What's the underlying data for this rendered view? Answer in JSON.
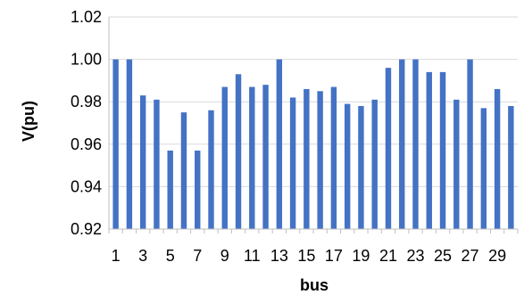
{
  "chart_data": {
    "type": "bar",
    "xlabel": "bus",
    "ylabel": "V(pu)",
    "ylim": [
      0.92,
      1.02
    ],
    "yticks": [
      "0.92",
      "0.94",
      "0.96",
      "0.98",
      "1.00",
      "1.02"
    ],
    "grid": "horizontal",
    "legend": "none",
    "bar_color": "#4472C4",
    "categories": [
      "1",
      "2",
      "3",
      "4",
      "5",
      "6",
      "7",
      "8",
      "9",
      "10",
      "11",
      "12",
      "13",
      "14",
      "15",
      "16",
      "17",
      "18",
      "19",
      "20",
      "21",
      "22",
      "23",
      "24",
      "25",
      "26",
      "27",
      "28",
      "29",
      "30"
    ],
    "x_tick_labels": [
      "1",
      "",
      "3",
      "",
      "5",
      "",
      "7",
      "",
      "9",
      "",
      "11",
      "",
      "13",
      "",
      "15",
      "",
      "17",
      "",
      "19",
      "",
      "21",
      "",
      "23",
      "",
      "25",
      "",
      "27",
      "",
      "29",
      ""
    ],
    "values": [
      1.0,
      1.0,
      0.983,
      0.981,
      0.957,
      0.975,
      0.957,
      0.976,
      0.987,
      0.993,
      0.987,
      0.988,
      1.0,
      0.982,
      0.986,
      0.985,
      0.987,
      0.979,
      0.978,
      0.981,
      0.996,
      1.0,
      1.0,
      0.994,
      0.994,
      0.981,
      1.0,
      0.977,
      0.986,
      0.978
    ]
  }
}
